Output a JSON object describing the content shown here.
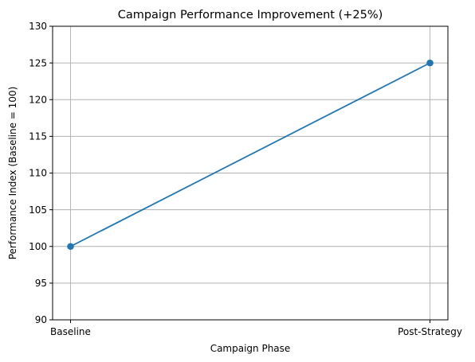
{
  "chart_data": {
    "type": "line",
    "title": "Campaign Performance Improvement (+25%)",
    "xlabel": "Campaign Phase",
    "ylabel": "Performance Index (Baseline = 100)",
    "categories": [
      "Baseline",
      "Post-Strategy"
    ],
    "series": [
      {
        "values": [
          100,
          125
        ],
        "color": "#1f77b4",
        "marker": "circle"
      }
    ],
    "ylim": [
      90,
      130
    ],
    "yticks": [
      90,
      95,
      100,
      105,
      110,
      115,
      120,
      125,
      130
    ],
    "ytick_labels": [
      "90",
      "95",
      "100",
      "105",
      "110",
      "115",
      "120",
      "125",
      "130"
    ],
    "grid": true,
    "legend": "none"
  }
}
